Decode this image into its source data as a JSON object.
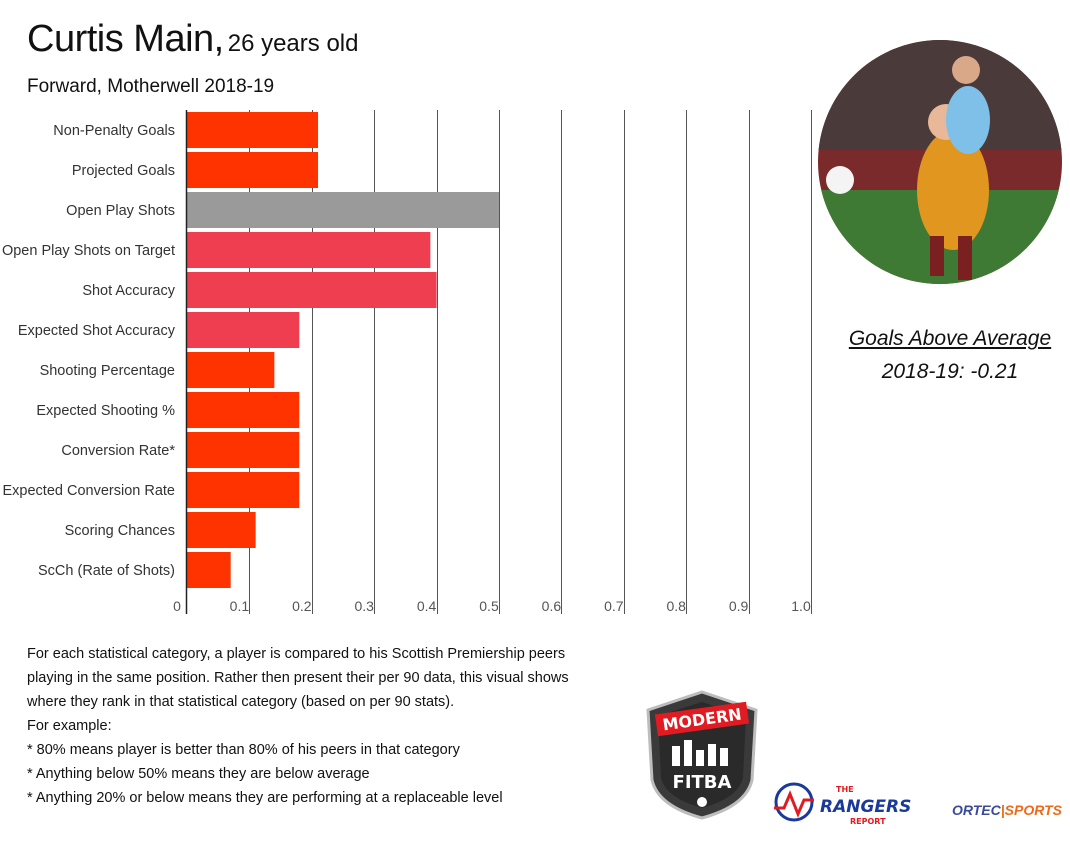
{
  "header": {
    "player_name": "Curtis Main,",
    "age": "26 years old",
    "subtitle": "Forward, Motherwell  2018-19"
  },
  "chart_data": {
    "type": "bar",
    "orientation": "horizontal",
    "categories": [
      "Non-Penalty Goals",
      "Projected Goals",
      "Open Play Shots",
      "Open Play Shots on Target",
      "Shot Accuracy",
      "Expected Shot Accuracy",
      "Shooting Percentage",
      "Expected Shooting %",
      "Conversion Rate*",
      "Expected Conversion Rate",
      "Scoring Chances",
      "ScCh (Rate of Shots)"
    ],
    "values": [
      0.21,
      0.21,
      0.5,
      0.39,
      0.4,
      0.18,
      0.14,
      0.18,
      0.18,
      0.18,
      0.11,
      0.07
    ],
    "colors": [
      "#ff3300",
      "#ff3300",
      "#9a9a9a",
      "#ee3e50",
      "#ee3e50",
      "#ee3e50",
      "#ff3300",
      "#ff3300",
      "#ff3300",
      "#ff3300",
      "#ff3300",
      "#ff3300"
    ],
    "xticks": [
      "0",
      "0.1",
      "0.2",
      "0.3",
      "0.4",
      "0.5",
      "0.6",
      "0.7",
      "0.8",
      "0.9",
      "1.0"
    ],
    "xlim": [
      0,
      1.0
    ],
    "grid": "vertical"
  },
  "goals_above_average": {
    "label": "Goals Above Average ",
    "value": "2018-19:  -0.21"
  },
  "notes": [
    "For each statistical category, a player is compared to his Scottish Premiership peers",
    "playing in the same position.  Rather then present their per 90 data, this visual shows",
    "where they rank in that statistical category (based on per 90 stats).",
    "For example:",
    "* 80% means player is better than 80% of his peers in that category",
    "* Anything below 50% means they are below average",
    "* Anything 20% or below means they are performing at a replaceable level"
  ],
  "logos": {
    "modern_fitba": [
      "MODERN",
      "FITBA"
    ],
    "rangers_report": [
      "THE",
      "RANGERS",
      "REPORT"
    ],
    "ortec_a": "ORTEC",
    "ortec_b": "SPORTS"
  }
}
